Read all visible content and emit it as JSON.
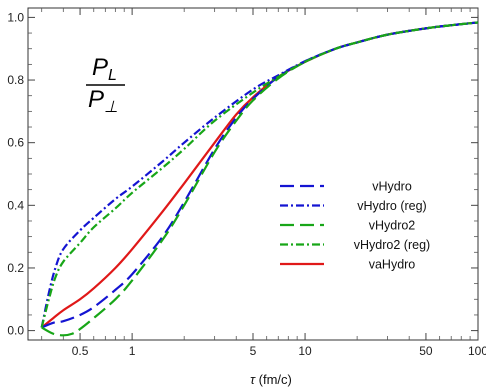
{
  "chart_data": {
    "type": "line",
    "x_scale": "log",
    "xlim": [
      0.25,
      100
    ],
    "ylim": [
      -0.03,
      1.03
    ],
    "xticks": [
      0.5,
      1,
      5,
      10,
      50,
      100
    ],
    "xtick_labels": [
      "0.5",
      "1",
      "5",
      "10",
      "50",
      "100"
    ],
    "yticks": [
      0,
      0.2,
      0.4,
      0.6,
      0.8,
      1.0
    ],
    "ytick_labels": [
      "0.0",
      "0.2",
      "0.4",
      "0.6",
      "0.8",
      "1.0"
    ],
    "xlabel_symbol": "τ",
    "xlabel_unit": "(fm/c)",
    "ylabel": "",
    "annotation": {
      "numerator": "P",
      "numerator_sub": "L",
      "denominator": "P",
      "denominator_sub": "⊥"
    },
    "legend_position": "center-right",
    "grid": false,
    "series": [
      {
        "name": "vHydro",
        "color": "#1414d2",
        "dash": "long-dash",
        "points": [
          [
            0.3,
            0.01
          ],
          [
            0.35,
            0.025
          ],
          [
            0.4,
            0.03
          ],
          [
            0.5,
            0.05
          ],
          [
            0.6,
            0.075
          ],
          [
            0.8,
            0.13
          ],
          [
            1,
            0.18
          ],
          [
            1.5,
            0.3
          ],
          [
            2,
            0.41
          ],
          [
            3,
            0.58
          ],
          [
            4,
            0.68
          ],
          [
            5,
            0.74
          ],
          [
            7,
            0.81
          ],
          [
            10,
            0.86
          ],
          [
            15,
            0.9
          ],
          [
            20,
            0.92
          ],
          [
            30,
            0.945
          ],
          [
            50,
            0.965
          ],
          [
            70,
            0.975
          ],
          [
            100,
            0.984
          ]
        ]
      },
      {
        "name": "vHydro (reg)",
        "color": "#1414d2",
        "dash": "dash-dot",
        "points": [
          [
            0.3,
            0.01
          ],
          [
            0.33,
            0.12
          ],
          [
            0.36,
            0.2
          ],
          [
            0.4,
            0.26
          ],
          [
            0.5,
            0.32
          ],
          [
            0.6,
            0.36
          ],
          [
            0.8,
            0.42
          ],
          [
            1,
            0.46
          ],
          [
            1.5,
            0.54
          ],
          [
            2,
            0.6
          ],
          [
            3,
            0.68
          ],
          [
            5,
            0.77
          ],
          [
            7,
            0.815
          ],
          [
            10,
            0.86
          ],
          [
            15,
            0.9
          ],
          [
            20,
            0.92
          ],
          [
            30,
            0.945
          ],
          [
            50,
            0.965
          ],
          [
            70,
            0.975
          ],
          [
            100,
            0.984
          ]
        ]
      },
      {
        "name": "vHydro2",
        "color": "#18a618",
        "dash": "long-dash",
        "points": [
          [
            0.3,
            0.01
          ],
          [
            0.35,
            -0.01
          ],
          [
            0.4,
            -0.015
          ],
          [
            0.45,
            -0.01
          ],
          [
            0.5,
            0.005
          ],
          [
            0.6,
            0.04
          ],
          [
            0.8,
            0.1
          ],
          [
            1,
            0.16
          ],
          [
            1.5,
            0.29
          ],
          [
            2,
            0.4
          ],
          [
            3,
            0.57
          ],
          [
            4,
            0.67
          ],
          [
            5,
            0.735
          ],
          [
            7,
            0.805
          ],
          [
            10,
            0.858
          ],
          [
            15,
            0.9
          ],
          [
            20,
            0.92
          ],
          [
            30,
            0.945
          ],
          [
            50,
            0.965
          ],
          [
            70,
            0.975
          ],
          [
            100,
            0.984
          ]
        ]
      },
      {
        "name": "vHydro2 (reg)",
        "color": "#18a618",
        "dash": "dash-dot",
        "points": [
          [
            0.3,
            0.01
          ],
          [
            0.33,
            0.1
          ],
          [
            0.36,
            0.17
          ],
          [
            0.4,
            0.22
          ],
          [
            0.5,
            0.28
          ],
          [
            0.6,
            0.33
          ],
          [
            0.8,
            0.39
          ],
          [
            1,
            0.44
          ],
          [
            1.5,
            0.52
          ],
          [
            2,
            0.58
          ],
          [
            3,
            0.67
          ],
          [
            5,
            0.76
          ],
          [
            7,
            0.81
          ],
          [
            10,
            0.858
          ],
          [
            15,
            0.9
          ],
          [
            20,
            0.92
          ],
          [
            30,
            0.945
          ],
          [
            50,
            0.965
          ],
          [
            70,
            0.975
          ],
          [
            100,
            0.984
          ]
        ]
      },
      {
        "name": "vaHydro",
        "color": "#e01818",
        "dash": "solid",
        "points": [
          [
            0.3,
            0.01
          ],
          [
            0.35,
            0.04
          ],
          [
            0.4,
            0.065
          ],
          [
            0.5,
            0.1
          ],
          [
            0.6,
            0.135
          ],
          [
            0.8,
            0.2
          ],
          [
            1,
            0.26
          ],
          [
            1.5,
            0.38
          ],
          [
            2,
            0.47
          ],
          [
            3,
            0.6
          ],
          [
            4,
            0.69
          ],
          [
            5,
            0.745
          ],
          [
            7,
            0.81
          ],
          [
            10,
            0.858
          ],
          [
            15,
            0.9
          ],
          [
            20,
            0.92
          ],
          [
            30,
            0.945
          ],
          [
            50,
            0.965
          ],
          [
            70,
            0.975
          ],
          [
            100,
            0.984
          ]
        ]
      }
    ]
  }
}
